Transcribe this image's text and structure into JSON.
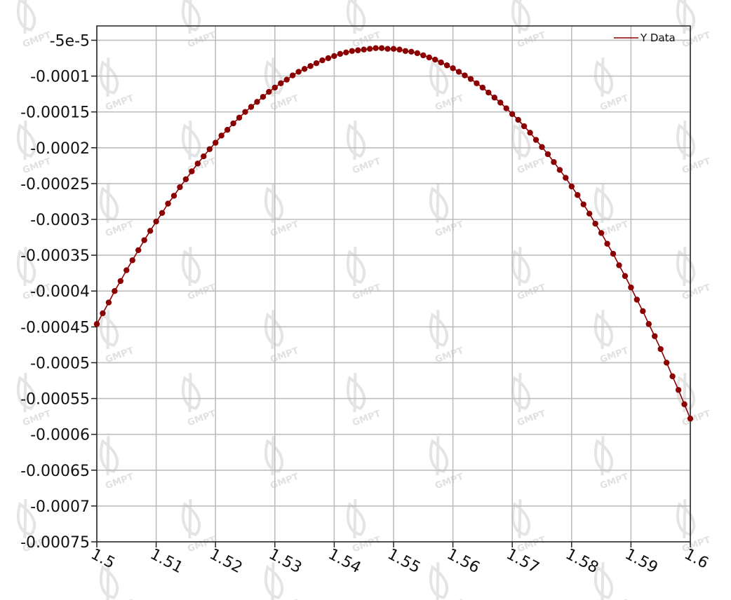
{
  "chart_data": {
    "type": "line",
    "markers": true,
    "x_range": [
      1.5,
      1.6
    ],
    "y_range": [
      -0.00075,
      -3e-05
    ],
    "x_ticks": [
      1.5,
      1.51,
      1.52,
      1.53,
      1.54,
      1.55,
      1.56,
      1.57,
      1.58,
      1.59,
      1.6
    ],
    "x_tick_labels": [
      "1.5",
      "1.51",
      "1.52",
      "1.53",
      "1.54",
      "1.55",
      "1.56",
      "1.57",
      "1.58",
      "1.59",
      "1.6"
    ],
    "y_ticks": [
      -5e-05,
      -0.0001,
      -0.00015,
      -0.0002,
      -0.00025,
      -0.0003,
      -0.00035,
      -0.0004,
      -0.00045,
      -0.0005,
      -0.00055,
      -0.0006,
      -0.00065,
      -0.0007,
      -0.00075
    ],
    "y_tick_labels": [
      "-5e-5",
      "-0.0001",
      "-0.00015",
      "-0.0002",
      "-0.00025",
      "-0.0003",
      "-0.00035",
      "-0.0004",
      "-0.00045",
      "-0.0005",
      "-0.00055",
      "-0.0006",
      "-0.00065",
      "-0.0007",
      "-0.00075"
    ],
    "grid": true,
    "legend_position": "top-right",
    "series": [
      {
        "name": "Y Data",
        "color": "#8b0000",
        "x": [
          1.5,
          1.501,
          1.502,
          1.503,
          1.504,
          1.505,
          1.506,
          1.507,
          1.508,
          1.509,
          1.51,
          1.511,
          1.512,
          1.513,
          1.514,
          1.515,
          1.516,
          1.517,
          1.518,
          1.519,
          1.52,
          1.521,
          1.522,
          1.523,
          1.524,
          1.525,
          1.526,
          1.527,
          1.528,
          1.529,
          1.53,
          1.531,
          1.532,
          1.533,
          1.534,
          1.535,
          1.536,
          1.537,
          1.538,
          1.539,
          1.54,
          1.541,
          1.542,
          1.543,
          1.544,
          1.545,
          1.546,
          1.547,
          1.548,
          1.549,
          1.55,
          1.551,
          1.552,
          1.553,
          1.554,
          1.555,
          1.556,
          1.557,
          1.558,
          1.559,
          1.56,
          1.561,
          1.562,
          1.563,
          1.564,
          1.565,
          1.566,
          1.567,
          1.568,
          1.569,
          1.57,
          1.571,
          1.572,
          1.573,
          1.574,
          1.575,
          1.576,
          1.577,
          1.578,
          1.579,
          1.58,
          1.581,
          1.582,
          1.583,
          1.584,
          1.585,
          1.586,
          1.587,
          1.588,
          1.589,
          1.59,
          1.591,
          1.592,
          1.593,
          1.594,
          1.595,
          1.596,
          1.597,
          1.598,
          1.599,
          1.6
        ],
        "y": [
          -0.000446,
          -0.000431,
          -0.000416,
          -0.0004,
          -0.000386,
          -0.000371,
          -0.000357,
          -0.000343,
          -0.000329,
          -0.000316,
          -0.000303,
          -0.000291,
          -0.000278,
          -0.000267,
          -0.000255,
          -0.000244,
          -0.000233,
          -0.000222,
          -0.000212,
          -0.000202,
          -0.000193,
          -0.000183,
          -0.000175,
          -0.000166,
          -0.000158,
          -0.00015,
          -0.000143,
          -0.000136,
          -0.000129,
          -0.000122,
          -0.000116,
          -0.00011,
          -0.000105,
          -9.9e-05,
          -9.4e-05,
          -9e-05,
          -8.6e-05,
          -8.2e-05,
          -7.8e-05,
          -7.5e-05,
          -7.2e-05,
          -6.9e-05,
          -6.7e-05,
          -6.5e-05,
          -6.4e-05,
          -6.3e-05,
          -6.2e-05,
          -6.1e-05,
          -6.1e-05,
          -6.2e-05,
          -6.2e-05,
          -6.3e-05,
          -6.5e-05,
          -6.6e-05,
          -6.8e-05,
          -7.1e-05,
          -7.4e-05,
          -7.7e-05,
          -8.1e-05,
          -8.5e-05,
          -8.9e-05,
          -9.4e-05,
          -9.9e-05,
          -0.000104,
          -0.00011,
          -0.000116,
          -0.000123,
          -0.00013,
          -0.000137,
          -0.000145,
          -0.000153,
          -0.000161,
          -0.00017,
          -0.000179,
          -0.000189,
          -0.000199,
          -0.000209,
          -0.00022,
          -0.000231,
          -0.000242,
          -0.000254,
          -0.000266,
          -0.000279,
          -0.000292,
          -0.000306,
          -0.000319,
          -0.000334,
          -0.000348,
          -0.000364,
          -0.000379,
          -0.000395,
          -0.000412,
          -0.000428,
          -0.000446,
          -0.000463,
          -0.000481,
          -0.0005,
          -0.000519,
          -0.000538,
          -0.000558,
          -0.000578
        ]
      }
    ]
  },
  "watermark": {
    "text": "GMPT",
    "icon": "gmpt-logo-icon"
  }
}
